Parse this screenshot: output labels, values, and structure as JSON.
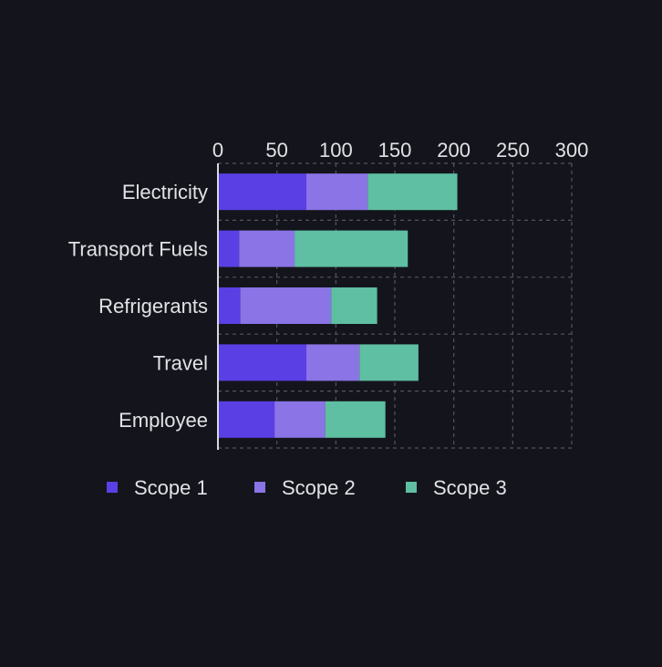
{
  "colors": {
    "background": "#14151c",
    "text": "#e2e2e6",
    "grid": "#52545e",
    "axis": "#d8d8de"
  },
  "chart_data": {
    "type": "bar",
    "orientation": "horizontal",
    "stacked": true,
    "categories": [
      "Electricity",
      "Transport Fuels",
      "Refrigerants",
      "Travel",
      "Employee"
    ],
    "series": [
      {
        "name": "Scope 1",
        "color": "#5a3fe4",
        "values": [
          75,
          18,
          19,
          75,
          48
        ]
      },
      {
        "name": "Scope 2",
        "color": "#8b74e6",
        "values": [
          52,
          47,
          77,
          45,
          43
        ]
      },
      {
        "name": "Scope 3",
        "color": "#5fbfa2",
        "values": [
          76,
          96,
          39,
          50,
          51
        ]
      }
    ],
    "xlim": [
      0,
      300
    ],
    "xticks": [
      "0",
      "50",
      "100",
      "150",
      "200",
      "250",
      "300"
    ],
    "x_axis_position": "top",
    "grid": true,
    "legend": "bottom"
  }
}
